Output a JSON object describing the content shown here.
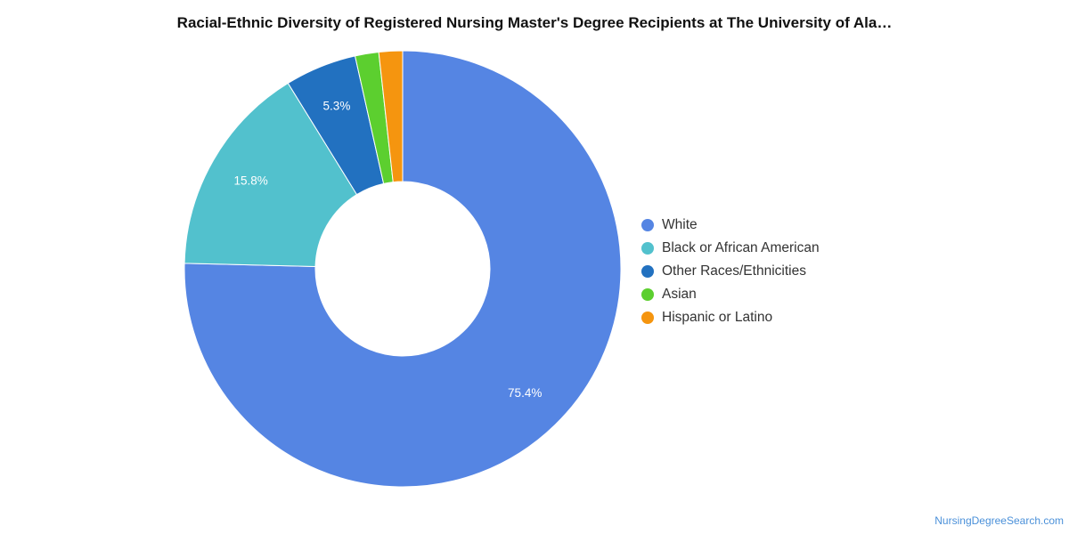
{
  "title": "Racial-Ethnic Diversity of Registered Nursing Master's Degree Recipients at The University of Ala…",
  "credit": "NursingDegreeSearch.com",
  "chart_data": {
    "type": "pie",
    "donut": true,
    "title": "Racial-Ethnic Diversity of Registered Nursing Master's Degree Recipients at The University of Ala…",
    "legend_position": "right",
    "categories": [
      "White",
      "Black or African American",
      "Other Races/Ethnicities",
      "Asian",
      "Hispanic or Latino"
    ],
    "values": [
      75.4,
      15.8,
      5.3,
      1.75,
      1.75
    ],
    "data_labels": [
      "75.4%",
      "15.8%",
      "5.3%",
      "",
      ""
    ],
    "colors": [
      "#5585e3",
      "#52c1cd",
      "#2271c0",
      "#5ccf2f",
      "#f5950f"
    ]
  }
}
